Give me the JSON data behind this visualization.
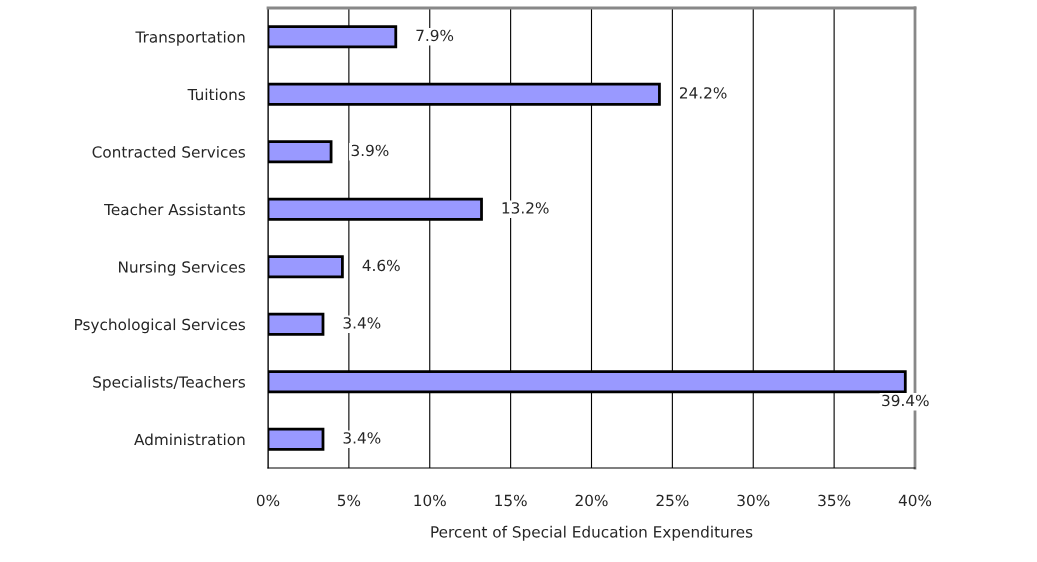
{
  "chart_data": {
    "type": "bar",
    "orientation": "horizontal",
    "xlabel": "Percent of Special Education Expenditures",
    "categories": [
      "Transportation",
      "Tuitions",
      "Contracted Services",
      "Teacher Assistants",
      "Nursing Services",
      "Psychological Services",
      "Specialists/Teachers",
      "Administration"
    ],
    "values": [
      7.9,
      24.2,
      3.9,
      13.2,
      4.6,
      3.4,
      39.4,
      3.4
    ],
    "value_labels": [
      "7.9%",
      "24.2%",
      "3.9%",
      "13.2%",
      "4.6%",
      "3.4%",
      "39.4%",
      "3.4%"
    ],
    "color": "#9999ff",
    "xlim": [
      0,
      40
    ],
    "xticks": [
      {
        "value": 0,
        "label": "0%"
      },
      {
        "value": 5,
        "label": "5%"
      },
      {
        "value": 10,
        "label": "10%"
      },
      {
        "value": 15,
        "label": "15%"
      },
      {
        "value": 20,
        "label": "20%"
      },
      {
        "value": 25,
        "label": "25%"
      },
      {
        "value": 30,
        "label": "30%"
      },
      {
        "value": 35,
        "label": "35%"
      },
      {
        "value": 40,
        "label": "40%"
      }
    ],
    "grid": "x",
    "legend": false
  }
}
